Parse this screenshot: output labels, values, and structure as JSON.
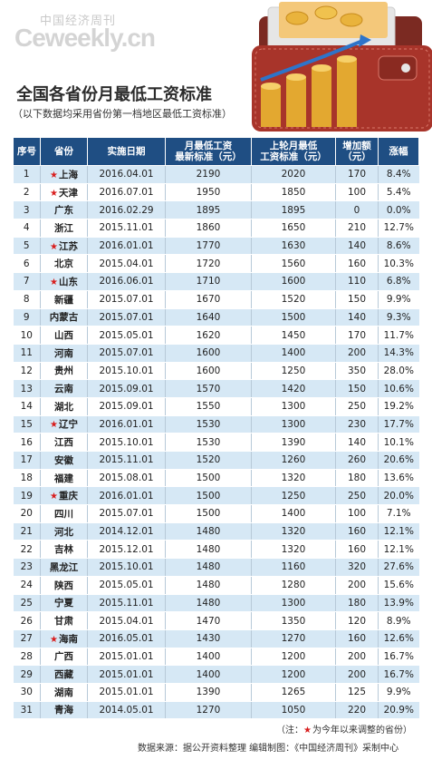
{
  "watermark": {
    "cn": "中国经济周刊",
    "en": "Ceweekly.cn"
  },
  "title": "全国各省份月最低工资标准",
  "subtitle": "（以下数据均采用省份第一档地区最低工资标准）",
  "colors": {
    "header_bg": "#1f4e83",
    "stripe": "#d6e8f5",
    "star": "#d81e1e"
  },
  "icons": {
    "star": "star-icon",
    "wallet": "wallet-with-coins-illustration"
  },
  "table": {
    "headers": [
      "序号",
      "省份",
      "实施日期",
      "月最低工资\n最新标准（元）",
      "上轮月最低\n工资标准（元）",
      "增加额\n（元）",
      "涨幅"
    ]
  },
  "chart_data": {
    "type": "table",
    "columns": [
      "序号",
      "省份",
      "实施日期",
      "月最低工资最新标准（元）",
      "上轮月最低工资标准（元）",
      "增加额（元）",
      "涨幅"
    ],
    "rows": [
      {
        "no": "1",
        "starred": true,
        "province": "上海",
        "date": "2016.04.01",
        "latest": "2190",
        "previous": "2020",
        "increase": "170",
        "rate": "8.4%"
      },
      {
        "no": "2",
        "starred": true,
        "province": "天津",
        "date": "2016.07.01",
        "latest": "1950",
        "previous": "1850",
        "increase": "100",
        "rate": "5.4%"
      },
      {
        "no": "3",
        "starred": false,
        "province": "广东",
        "date": "2016.02.29",
        "latest": "1895",
        "previous": "1895",
        "increase": "0",
        "rate": "0.0%"
      },
      {
        "no": "4",
        "starred": false,
        "province": "浙江",
        "date": "2015.11.01",
        "latest": "1860",
        "previous": "1650",
        "increase": "210",
        "rate": "12.7%"
      },
      {
        "no": "5",
        "starred": true,
        "province": "江苏",
        "date": "2016.01.01",
        "latest": "1770",
        "previous": "1630",
        "increase": "140",
        "rate": "8.6%"
      },
      {
        "no": "6",
        "starred": false,
        "province": "北京",
        "date": "2015.04.01",
        "latest": "1720",
        "previous": "1560",
        "increase": "160",
        "rate": "10.3%"
      },
      {
        "no": "7",
        "starred": true,
        "province": "山东",
        "date": "2016.06.01",
        "latest": "1710",
        "previous": "1600",
        "increase": "110",
        "rate": "6.8%"
      },
      {
        "no": "8",
        "starred": false,
        "province": "新疆",
        "date": "2015.07.01",
        "latest": "1670",
        "previous": "1520",
        "increase": "150",
        "rate": "9.9%"
      },
      {
        "no": "9",
        "starred": false,
        "province": "内蒙古",
        "date": "2015.07.01",
        "latest": "1640",
        "previous": "1500",
        "increase": "140",
        "rate": "9.3%"
      },
      {
        "no": "10",
        "starred": false,
        "province": "山西",
        "date": "2015.05.01",
        "latest": "1620",
        "previous": "1450",
        "increase": "170",
        "rate": "11.7%"
      },
      {
        "no": "11",
        "starred": false,
        "province": "河南",
        "date": "2015.07.01",
        "latest": "1600",
        "previous": "1400",
        "increase": "200",
        "rate": "14.3%"
      },
      {
        "no": "12",
        "starred": false,
        "province": "贵州",
        "date": "2015.10.01",
        "latest": "1600",
        "previous": "1250",
        "increase": "350",
        "rate": "28.0%"
      },
      {
        "no": "13",
        "starred": false,
        "province": "云南",
        "date": "2015.09.01",
        "latest": "1570",
        "previous": "1420",
        "increase": "150",
        "rate": "10.6%"
      },
      {
        "no": "14",
        "starred": false,
        "province": "湖北",
        "date": "2015.09.01",
        "latest": "1550",
        "previous": "1300",
        "increase": "250",
        "rate": "19.2%"
      },
      {
        "no": "15",
        "starred": true,
        "province": "辽宁",
        "date": "2016.01.01",
        "latest": "1530",
        "previous": "1300",
        "increase": "230",
        "rate": "17.7%"
      },
      {
        "no": "16",
        "starred": false,
        "province": "江西",
        "date": "2015.10.01",
        "latest": "1530",
        "previous": "1390",
        "increase": "140",
        "rate": "10.1%"
      },
      {
        "no": "17",
        "starred": false,
        "province": "安徽",
        "date": "2015.11.01",
        "latest": "1520",
        "previous": "1260",
        "increase": "260",
        "rate": "20.6%"
      },
      {
        "no": "18",
        "starred": false,
        "province": "福建",
        "date": "2015.08.01",
        "latest": "1500",
        "previous": "1320",
        "increase": "180",
        "rate": "13.6%"
      },
      {
        "no": "19",
        "starred": true,
        "province": "重庆",
        "date": "2016.01.01",
        "latest": "1500",
        "previous": "1250",
        "increase": "250",
        "rate": "20.0%"
      },
      {
        "no": "20",
        "starred": false,
        "province": "四川",
        "date": "2015.07.01",
        "latest": "1500",
        "previous": "1400",
        "increase": "100",
        "rate": "7.1%"
      },
      {
        "no": "21",
        "starred": false,
        "province": "河北",
        "date": "2014.12.01",
        "latest": "1480",
        "previous": "1320",
        "increase": "160",
        "rate": "12.1%"
      },
      {
        "no": "22",
        "starred": false,
        "province": "吉林",
        "date": "2015.12.01",
        "latest": "1480",
        "previous": "1320",
        "increase": "160",
        "rate": "12.1%"
      },
      {
        "no": "23",
        "starred": false,
        "province": "黑龙江",
        "date": "2015.10.01",
        "latest": "1480",
        "previous": "1160",
        "increase": "320",
        "rate": "27.6%"
      },
      {
        "no": "24",
        "starred": false,
        "province": "陕西",
        "date": "2015.05.01",
        "latest": "1480",
        "previous": "1280",
        "increase": "200",
        "rate": "15.6%"
      },
      {
        "no": "25",
        "starred": false,
        "province": "宁夏",
        "date": "2015.11.01",
        "latest": "1480",
        "previous": "1300",
        "increase": "180",
        "rate": "13.9%"
      },
      {
        "no": "26",
        "starred": false,
        "province": "甘肃",
        "date": "2015.04.01",
        "latest": "1470",
        "previous": "1350",
        "increase": "120",
        "rate": "8.9%"
      },
      {
        "no": "27",
        "starred": true,
        "province": "海南",
        "date": "2016.05.01",
        "latest": "1430",
        "previous": "1270",
        "increase": "160",
        "rate": "12.6%"
      },
      {
        "no": "28",
        "starred": false,
        "province": "广西",
        "date": "2015.01.01",
        "latest": "1400",
        "previous": "1200",
        "increase": "200",
        "rate": "16.7%"
      },
      {
        "no": "29",
        "starred": false,
        "province": "西藏",
        "date": "2015.01.01",
        "latest": "1400",
        "previous": "1200",
        "increase": "200",
        "rate": "16.7%"
      },
      {
        "no": "30",
        "starred": false,
        "province": "湖南",
        "date": "2015.01.01",
        "latest": "1390",
        "previous": "1265",
        "increase": "125",
        "rate": "9.9%"
      },
      {
        "no": "31",
        "starred": false,
        "province": "青海",
        "date": "2014.05.01",
        "latest": "1270",
        "previous": "1050",
        "increase": "220",
        "rate": "20.9%"
      }
    ]
  },
  "note": {
    "prefix": "（注：",
    "star": "★",
    "text": "为今年以来调整的省份）"
  },
  "source": "数据来源：据公开资料整理  编辑制图：《中国经济周刊》采制中心"
}
